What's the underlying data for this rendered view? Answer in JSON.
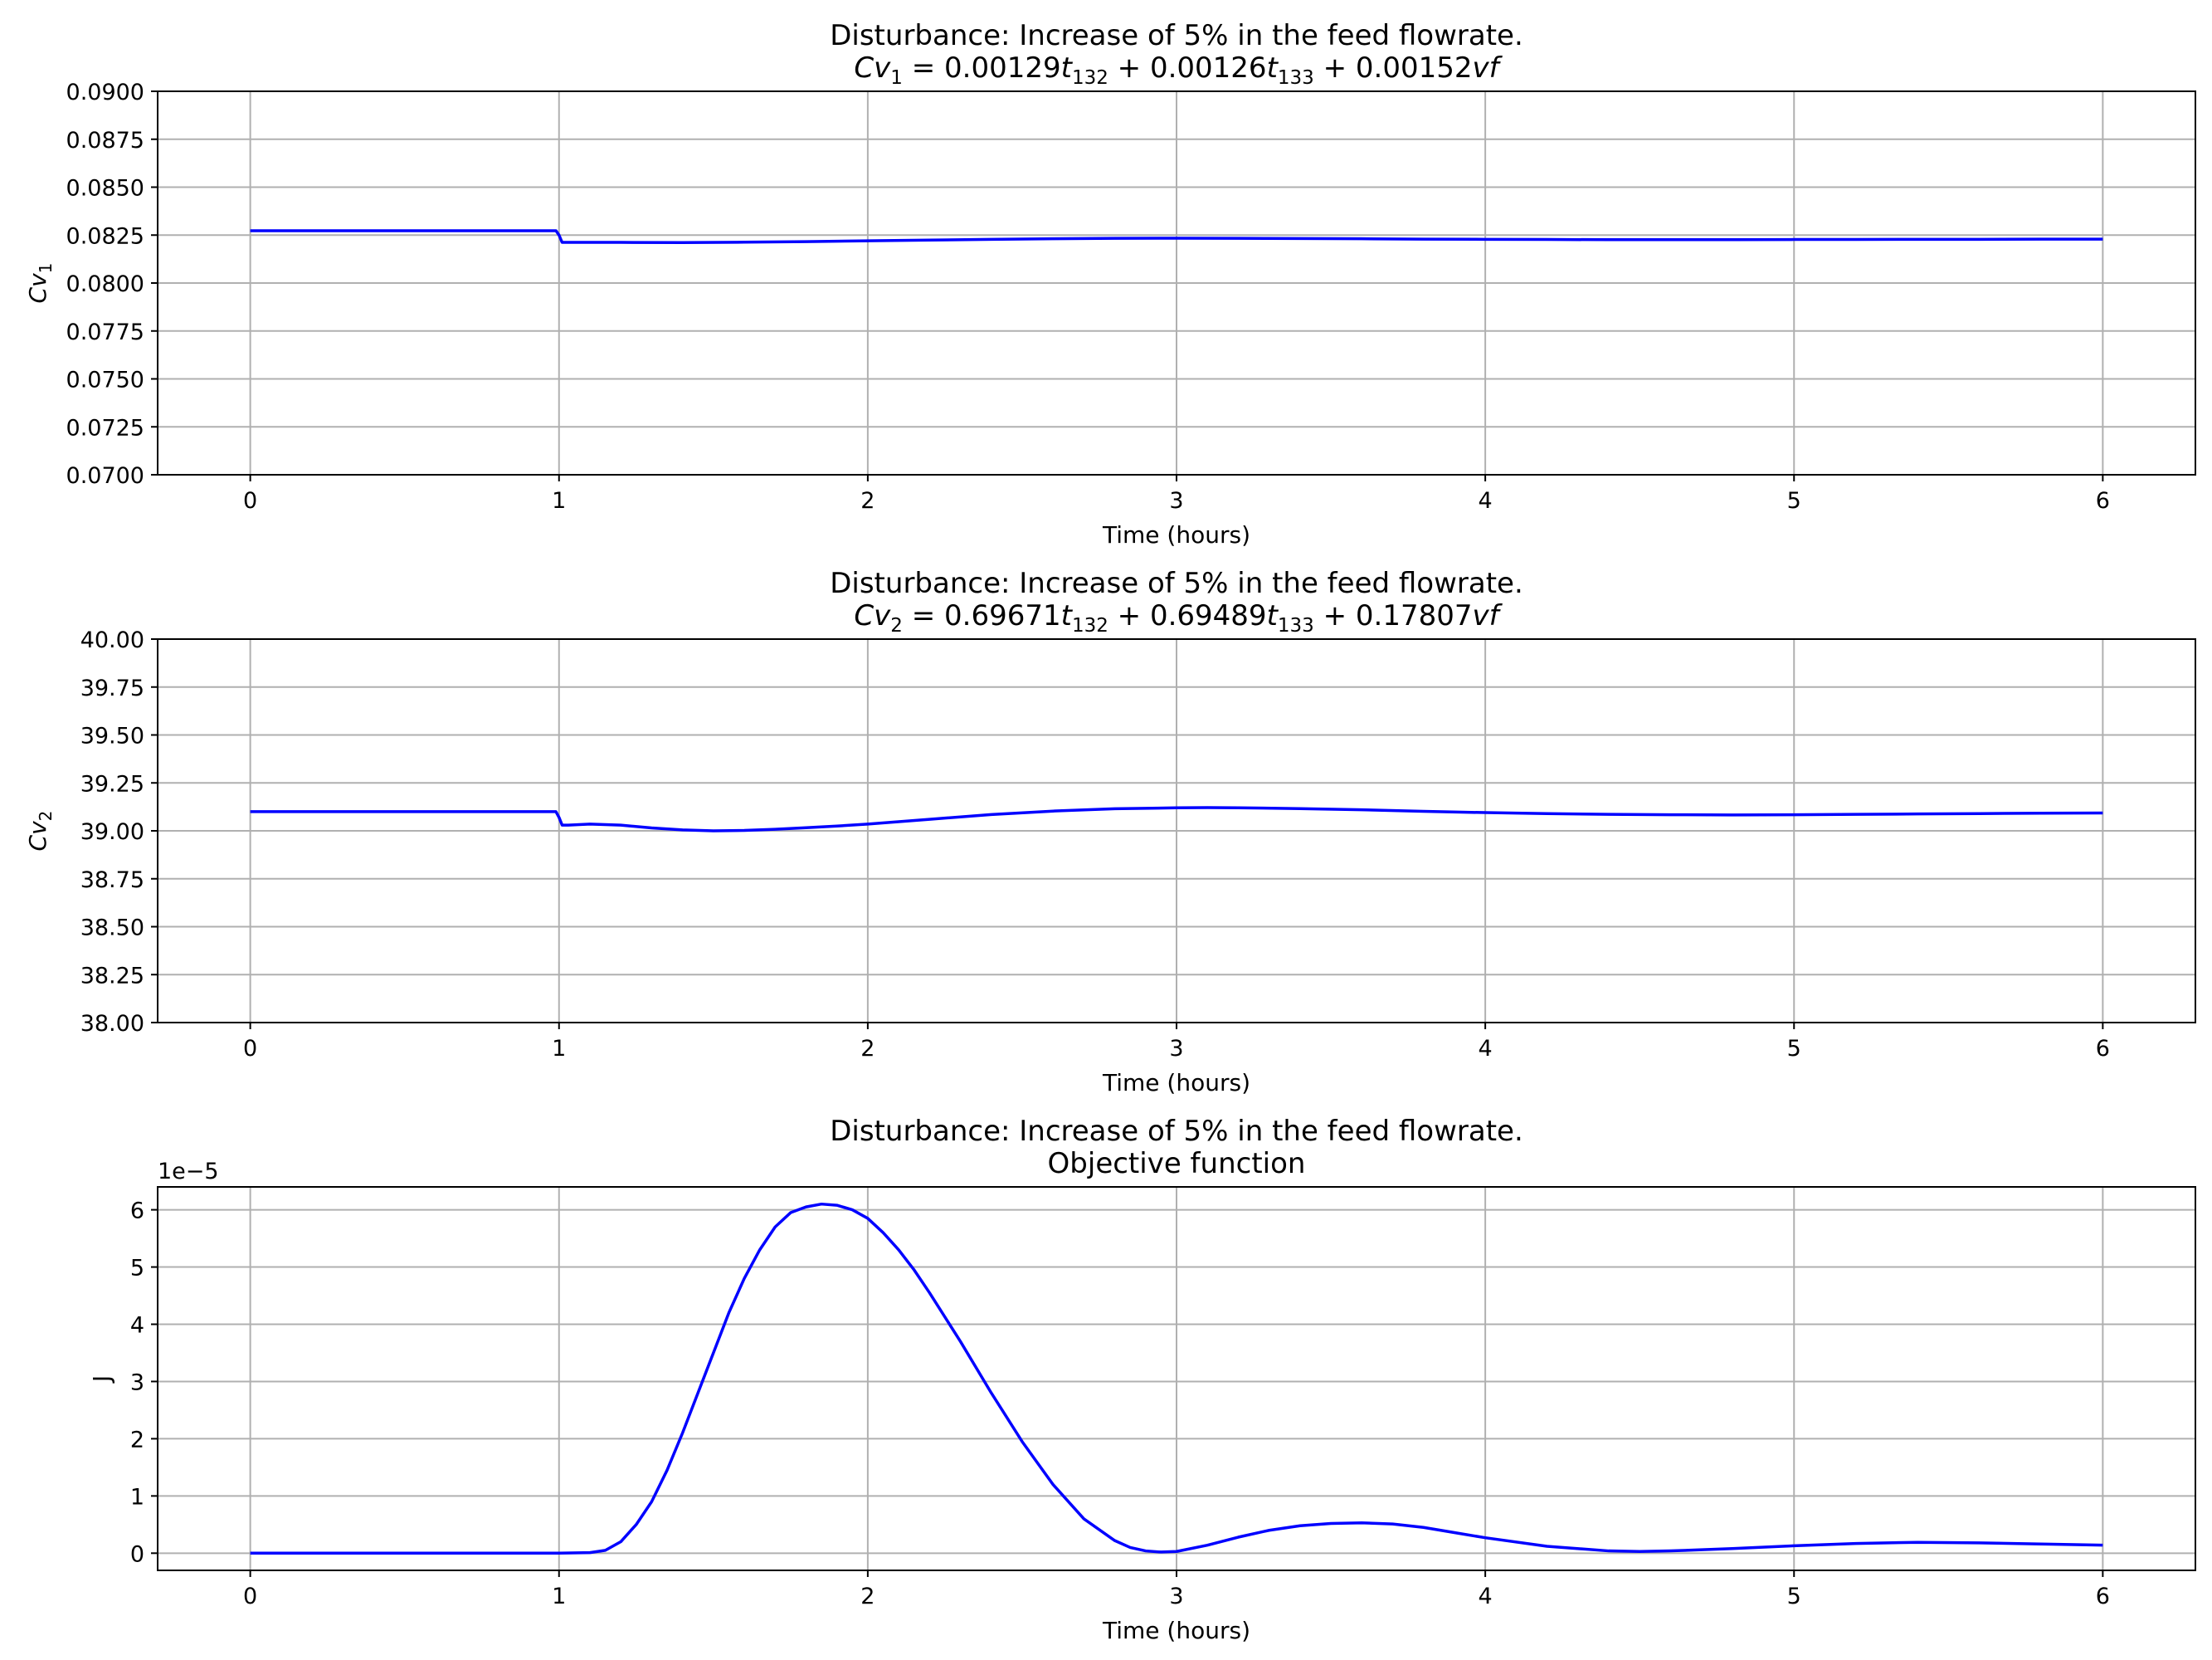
{
  "chart_data": [
    {
      "type": "line",
      "title": "Disturbance: Increase of 5% in the feed flowrate.",
      "subtitle_parts": [
        "Cv",
        "1",
        " = 0.00129",
        "t",
        "132",
        " + 0.00126",
        "t",
        "133",
        " + 0.00152",
        "vf"
      ],
      "xlabel": "Time (hours)",
      "ylabel_parts": [
        "Cv",
        "1"
      ],
      "xlim": [
        -0.3,
        6.3
      ],
      "ylim": [
        0.07,
        0.09
      ],
      "xticks": [
        "0",
        "1",
        "2",
        "3",
        "4",
        "5",
        "6"
      ],
      "yticks": [
        "0.0700",
        "0.0725",
        "0.0750",
        "0.0775",
        "0.0800",
        "0.0825",
        "0.0850",
        "0.0875",
        "0.0900"
      ],
      "grid": true,
      "color": "#0000ff",
      "series": [
        {
          "x": [
            0,
            0.5,
            0.99,
            1.0,
            1.01,
            1.05,
            1.2,
            1.4,
            1.6,
            1.8,
            2.0,
            2.2,
            2.4,
            2.6,
            2.8,
            3.0,
            3.2,
            3.4,
            3.6,
            3.8,
            4.0,
            4.2,
            4.4,
            4.6,
            4.8,
            5.0,
            5.2,
            5.4,
            5.6,
            5.8,
            6.0
          ],
          "y": [
            0.08273,
            0.08273,
            0.08273,
            0.0825,
            0.08212,
            0.08212,
            0.08212,
            0.08211,
            0.08213,
            0.08216,
            0.0822,
            0.08224,
            0.08228,
            0.08231,
            0.08233,
            0.08234,
            0.08233,
            0.08232,
            0.08231,
            0.08229,
            0.08228,
            0.08227,
            0.08226,
            0.08226,
            0.08226,
            0.08227,
            0.08227,
            0.08228,
            0.08228,
            0.08229,
            0.08229
          ]
        }
      ]
    },
    {
      "type": "line",
      "title": "Disturbance: Increase of 5% in the feed flowrate.",
      "subtitle_parts": [
        "Cv",
        "2",
        " = 0.69671",
        "t",
        "132",
        " + 0.69489",
        "t",
        "133",
        " + 0.17807",
        "vf"
      ],
      "xlabel": "Time (hours)",
      "ylabel_parts": [
        "Cv",
        "2"
      ],
      "xlim": [
        -0.3,
        6.3
      ],
      "ylim": [
        38.0,
        40.0
      ],
      "xticks": [
        "0",
        "1",
        "2",
        "3",
        "4",
        "5",
        "6"
      ],
      "yticks": [
        "38.00",
        "38.25",
        "38.50",
        "38.75",
        "39.00",
        "39.25",
        "39.50",
        "39.75",
        "40.00"
      ],
      "grid": true,
      "color": "#0000ff",
      "series": [
        {
          "x": [
            0,
            0.5,
            0.99,
            1.0,
            1.01,
            1.03,
            1.1,
            1.2,
            1.3,
            1.4,
            1.5,
            1.6,
            1.7,
            1.8,
            1.9,
            2.0,
            2.2,
            2.4,
            2.6,
            2.8,
            3.0,
            3.1,
            3.2,
            3.4,
            3.6,
            3.8,
            4.0,
            4.2,
            4.4,
            4.6,
            4.8,
            5.0,
            5.2,
            5.4,
            5.6,
            5.8,
            6.0
          ],
          "y": [
            39.1,
            39.1,
            39.1,
            39.07,
            39.03,
            39.03,
            39.035,
            39.03,
            39.015,
            39.005,
            39.0,
            39.002,
            39.008,
            39.016,
            39.025,
            39.035,
            39.06,
            39.085,
            39.103,
            39.115,
            39.12,
            39.121,
            39.12,
            39.116,
            39.11,
            39.102,
            39.095,
            39.09,
            39.086,
            39.084,
            39.083,
            39.084,
            39.086,
            39.088,
            39.09,
            39.092,
            39.093
          ]
        }
      ]
    },
    {
      "type": "line",
      "title": "Disturbance: Increase of 5% in the feed flowrate.",
      "subtitle": "Objective function",
      "xlabel": "Time (hours)",
      "ylabel": "J",
      "offset_text": "1e−5",
      "xlim": [
        -0.3,
        6.3
      ],
      "ylim": [
        -0.3,
        6.4
      ],
      "y_scale_factor": 1e-05,
      "xticks": [
        "0",
        "1",
        "2",
        "3",
        "4",
        "5",
        "6"
      ],
      "yticks": [
        "0",
        "1",
        "2",
        "3",
        "4",
        "5",
        "6"
      ],
      "grid": true,
      "color": "#0000ff",
      "series": [
        {
          "x": [
            0,
            0.5,
            1.0,
            1.1,
            1.15,
            1.2,
            1.25,
            1.3,
            1.35,
            1.4,
            1.45,
            1.5,
            1.55,
            1.6,
            1.65,
            1.7,
            1.75,
            1.8,
            1.85,
            1.9,
            1.95,
            2.0,
            2.05,
            2.1,
            2.15,
            2.2,
            2.3,
            2.4,
            2.5,
            2.6,
            2.7,
            2.8,
            2.85,
            2.9,
            2.95,
            3.0,
            3.1,
            3.2,
            3.3,
            3.4,
            3.5,
            3.6,
            3.7,
            3.8,
            3.9,
            4.0,
            4.2,
            4.4,
            4.5,
            4.6,
            4.8,
            5.0,
            5.2,
            5.4,
            5.6,
            5.8,
            6.0
          ],
          "y": [
            0,
            0,
            0,
            0.01,
            0.05,
            0.2,
            0.5,
            0.9,
            1.45,
            2.1,
            2.8,
            3.5,
            4.2,
            4.8,
            5.3,
            5.7,
            5.95,
            6.05,
            6.1,
            6.08,
            6.0,
            5.85,
            5.6,
            5.3,
            4.95,
            4.55,
            3.7,
            2.8,
            1.95,
            1.2,
            0.6,
            0.22,
            0.1,
            0.04,
            0.02,
            0.03,
            0.14,
            0.28,
            0.4,
            0.48,
            0.52,
            0.53,
            0.51,
            0.45,
            0.36,
            0.27,
            0.12,
            0.04,
            0.03,
            0.04,
            0.08,
            0.13,
            0.17,
            0.19,
            0.18,
            0.16,
            0.14
          ]
        }
      ]
    }
  ]
}
